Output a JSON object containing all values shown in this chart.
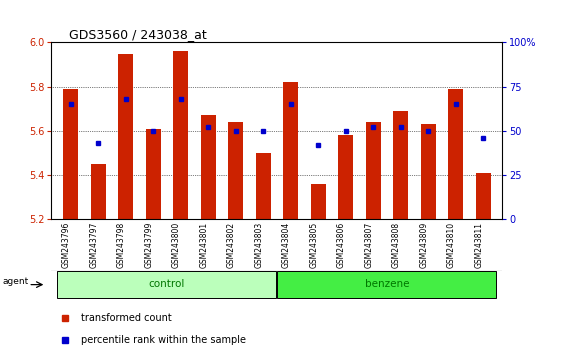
{
  "title": "GDS3560 / 243038_at",
  "samples": [
    "GSM243796",
    "GSM243797",
    "GSM243798",
    "GSM243799",
    "GSM243800",
    "GSM243801",
    "GSM243802",
    "GSM243803",
    "GSM243804",
    "GSM243805",
    "GSM243806",
    "GSM243807",
    "GSM243808",
    "GSM243809",
    "GSM243810",
    "GSM243811"
  ],
  "groups": [
    "control",
    "control",
    "control",
    "control",
    "control",
    "control",
    "control",
    "control",
    "benzene",
    "benzene",
    "benzene",
    "benzene",
    "benzene",
    "benzene",
    "benzene",
    "benzene"
  ],
  "bar_values": [
    5.79,
    5.45,
    5.95,
    5.61,
    5.96,
    5.67,
    5.64,
    5.5,
    5.82,
    5.36,
    5.58,
    5.64,
    5.69,
    5.63,
    5.79,
    5.41
  ],
  "dot_values_pct": [
    65,
    43,
    68,
    50,
    68,
    52,
    50,
    50,
    65,
    42,
    50,
    52,
    52,
    50,
    65,
    46
  ],
  "ymin": 5.2,
  "ymax": 6.0,
  "yticks": [
    5.2,
    5.4,
    5.6,
    5.8,
    6.0
  ],
  "right_yticks_pct": [
    0,
    25,
    50,
    75,
    100
  ],
  "bar_color": "#cc2200",
  "dot_color": "#0000cc",
  "control_color": "#bbffbb",
  "benzene_color": "#44ee44",
  "group_label_color": "#007700",
  "tick_label_color": "#cc2200",
  "right_tick_color": "#0000cc",
  "bar_width": 0.55
}
